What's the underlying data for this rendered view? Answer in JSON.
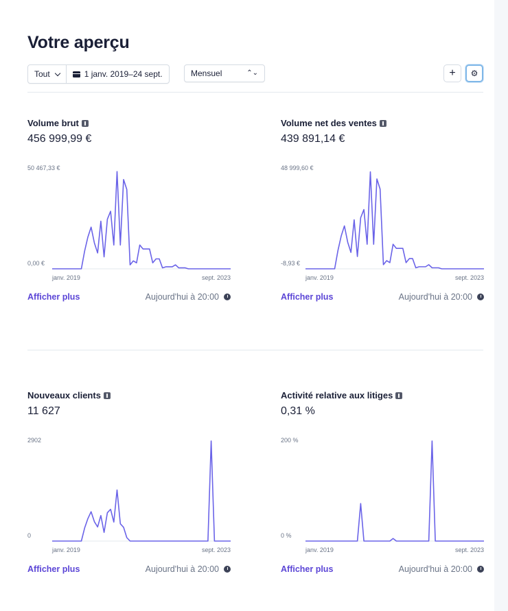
{
  "header": {
    "title": "Votre aperçu",
    "filter_all": "Tout",
    "date_range": "1 janv. 2019–24 sept.",
    "interval": "Mensuel"
  },
  "colors": {
    "accent": "#5b45d6",
    "line": "#6a63e8",
    "text": "#1a1f36",
    "muted": "#697386"
  },
  "cards": [
    {
      "title": "Volume brut",
      "value": "456 999,99 €",
      "max_label": "50 467,33 €",
      "min_label": "0,00 €",
      "x_start": "janv. 2019",
      "x_end": "sept. 2023",
      "more_label": "Afficher plus",
      "updated": "Aujourd'hui à 20:00",
      "ylim": [
        0,
        50467.33
      ],
      "values": [
        0,
        0,
        0,
        0,
        0,
        0,
        0,
        0,
        0,
        0,
        9000,
        16000,
        21000,
        13000,
        8000,
        24000,
        6000,
        25000,
        29000,
        12000,
        49000,
        12000,
        45000,
        40000,
        2000,
        4000,
        3000,
        12000,
        10000,
        10000,
        10000,
        3000,
        5000,
        5000,
        500,
        1000,
        1000,
        1000,
        2000,
        500,
        500,
        500,
        0,
        0,
        0,
        0,
        0,
        0,
        0,
        0,
        0,
        0,
        0,
        0,
        0,
        0
      ]
    },
    {
      "title": "Volume net des ventes",
      "value": "439 891,14 €",
      "max_label": "48 999,60 €",
      "min_label": "-8,93 €",
      "x_start": "janv. 2019",
      "x_end": "sept. 2023",
      "more_label": "Afficher plus",
      "updated": "Aujourd'hui à 20:00",
      "ylim": [
        -8.93,
        48999.6
      ],
      "values": [
        0,
        0,
        0,
        0,
        0,
        0,
        0,
        0,
        0,
        0,
        9000,
        16000,
        21000,
        13000,
        8000,
        24000,
        6000,
        25000,
        29000,
        12000,
        47500,
        12000,
        44000,
        39000,
        2000,
        4000,
        3000,
        12000,
        10000,
        10000,
        10000,
        3000,
        5000,
        5000,
        500,
        1000,
        1000,
        1000,
        2000,
        500,
        500,
        500,
        0,
        0,
        0,
        0,
        0,
        0,
        0,
        0,
        0,
        0,
        0,
        0,
        0,
        0
      ]
    },
    {
      "title": "Nouveaux clients",
      "value": "11 627",
      "max_label": "2902",
      "min_label": "0",
      "x_start": "janv. 2019",
      "x_end": "sept. 2023",
      "more_label": "Afficher plus",
      "updated": "Aujourd'hui à 20:00",
      "ylim": [
        0,
        2902
      ],
      "values": [
        0,
        0,
        0,
        0,
        0,
        0,
        0,
        0,
        0,
        0,
        380,
        650,
        850,
        560,
        410,
        740,
        250,
        820,
        920,
        550,
        1480,
        500,
        400,
        100,
        0,
        0,
        0,
        0,
        0,
        0,
        0,
        0,
        0,
        0,
        0,
        0,
        0,
        0,
        0,
        0,
        0,
        0,
        0,
        0,
        0,
        0,
        0,
        0,
        0,
        2902,
        0,
        0,
        0,
        0,
        0,
        0
      ]
    },
    {
      "title": "Activité relative aux litiges",
      "value": "0,31 %",
      "max_label": "200 %",
      "min_label": "0 %",
      "x_start": "janv. 2019",
      "x_end": "sept. 2023",
      "more_label": "Afficher plus",
      "updated": "Aujourd'hui à 20:00",
      "ylim": [
        0,
        200
      ],
      "values": [
        0,
        0,
        0,
        0,
        0,
        0,
        0,
        0,
        0,
        0,
        0,
        0,
        0,
        0,
        0,
        0,
        0,
        75,
        0,
        0,
        0,
        0,
        0,
        0,
        0,
        0,
        0,
        5,
        0,
        0,
        0,
        0,
        0,
        0,
        0,
        0,
        0,
        0,
        0,
        200,
        0,
        0,
        0,
        0,
        0,
        0,
        0,
        0,
        0,
        0,
        0,
        0,
        0,
        0,
        0,
        0
      ]
    }
  ]
}
